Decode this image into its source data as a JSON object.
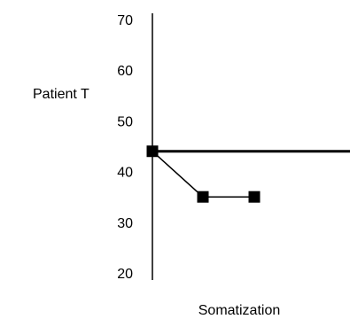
{
  "chart_data": {
    "type": "line",
    "title": "",
    "ylabel": "Patient T",
    "xlabel": "Somatization",
    "ylim": [
      20,
      70
    ],
    "y_ticks": [
      70,
      60,
      50,
      40,
      30,
      20
    ],
    "grid": false,
    "reference_line": {
      "y": 44
    },
    "series": [
      {
        "points": [
          {
            "x": 1,
            "y": 44
          },
          {
            "x": 2,
            "y": 35
          },
          {
            "x": 3,
            "y": 35
          }
        ]
      }
    ],
    "colors": {
      "axis": "#000000",
      "series": "#000000",
      "reference_line": "#000000"
    }
  }
}
